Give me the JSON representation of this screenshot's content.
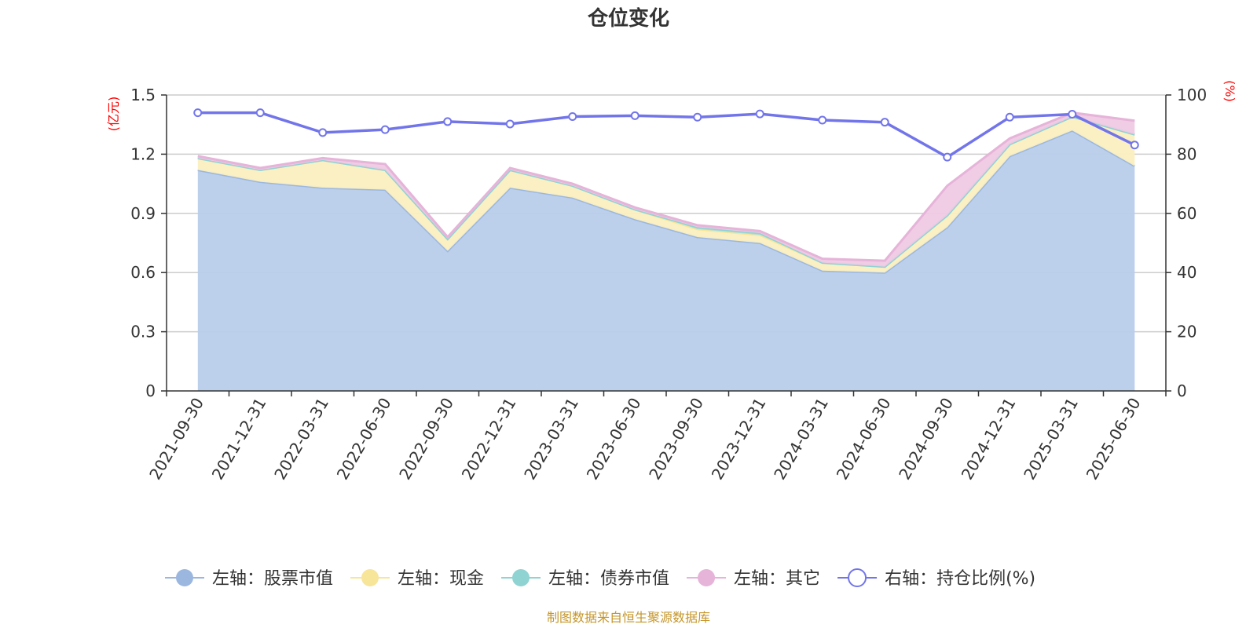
{
  "chart_data": {
    "type": "area",
    "title": "仓位变化",
    "categories": [
      "2021-09-30",
      "2021-12-31",
      "2022-03-31",
      "2022-06-30",
      "2022-09-30",
      "2022-12-31",
      "2023-03-31",
      "2023-06-30",
      "2023-09-30",
      "2023-12-31",
      "2024-03-31",
      "2024-06-30",
      "2024-09-30",
      "2024-12-31",
      "2025-03-31",
      "2025-06-30"
    ],
    "left_axis": {
      "unit": "(亿元)",
      "ylim": [
        0,
        1.5
      ],
      "ticks": [
        "0",
        "0.3",
        "0.6",
        "0.9",
        "1.2",
        "1.5"
      ]
    },
    "right_axis": {
      "unit": "(%)",
      "ylim": [
        0,
        100
      ],
      "ticks": [
        "0",
        "20",
        "40",
        "60",
        "80",
        "100"
      ]
    },
    "grid": true,
    "legend_position": "bottom",
    "series": [
      {
        "name": "左轴：股票市值",
        "axis": "left",
        "stack": true,
        "color": "#9bb7e0",
        "fill": "#b8cdeb",
        "values": [
          1.12,
          1.06,
          1.03,
          1.02,
          0.71,
          1.03,
          0.98,
          0.87,
          0.78,
          0.75,
          0.61,
          0.6,
          0.83,
          1.19,
          1.32,
          1.14
        ]
      },
      {
        "name": "左轴：现金",
        "axis": "left",
        "stack": true,
        "color": "#f7e59a",
        "fill": "#fbefc0",
        "values": [
          0.06,
          0.06,
          0.14,
          0.1,
          0.06,
          0.09,
          0.06,
          0.05,
          0.04,
          0.04,
          0.04,
          0.03,
          0.06,
          0.06,
          0.07,
          0.16
        ]
      },
      {
        "name": "左轴：债券市值",
        "axis": "left",
        "stack": true,
        "color": "#8fd3d3",
        "fill": "#a9dcdc",
        "values": [
          0,
          0,
          0,
          0,
          0,
          0,
          0,
          0,
          0.01,
          0.01,
          0,
          0,
          0,
          0,
          0,
          0
        ]
      },
      {
        "name": "左轴：其它",
        "axis": "left",
        "stack": true,
        "color": "#e6b3d9",
        "fill": "#efc9e4",
        "values": [
          0.01,
          0.01,
          0.01,
          0.03,
          0.01,
          0.01,
          0.01,
          0.01,
          0.01,
          0.01,
          0.02,
          0.03,
          0.15,
          0.03,
          0.02,
          0.07
        ]
      },
      {
        "name": "右轴：持仓比例(%)",
        "axis": "right",
        "type": "line",
        "color": "#7275ea",
        "values": [
          94.0,
          94.0,
          87.3,
          88.3,
          91.0,
          90.2,
          92.7,
          93.0,
          92.5,
          93.6,
          91.5,
          90.8,
          79.0,
          92.5,
          93.5,
          83.1
        ]
      }
    ]
  },
  "footer": {
    "source_text": "制图数据来自恒生聚源数据库"
  }
}
